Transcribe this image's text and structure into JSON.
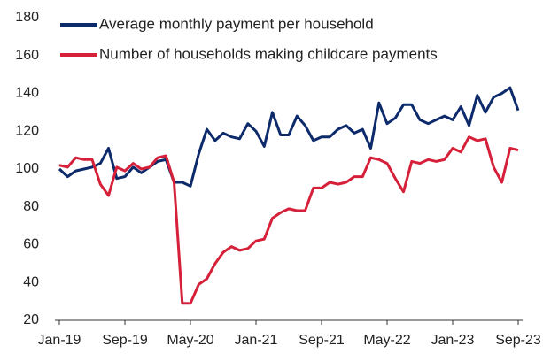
{
  "chart_data": {
    "type": "line",
    "categories": [
      "Jan-19",
      null,
      null,
      null,
      null,
      null,
      null,
      null,
      "Sep-19",
      null,
      null,
      null,
      null,
      null,
      null,
      null,
      "May-20",
      null,
      null,
      null,
      null,
      null,
      null,
      null,
      "Jan-21",
      null,
      null,
      null,
      null,
      null,
      null,
      null,
      "Sep-21",
      null,
      null,
      null,
      null,
      null,
      null,
      null,
      "May-22",
      null,
      null,
      null,
      null,
      null,
      null,
      null,
      "Jan-23",
      null,
      null,
      null,
      null,
      null,
      null,
      null,
      "Sep-23"
    ],
    "series": [
      {
        "name": "Average monthly payment per household",
        "color": "#0d2a6b",
        "values": [
          100,
          96,
          99,
          100,
          101,
          103,
          111,
          95,
          96,
          101,
          98,
          101,
          104,
          105,
          93,
          93,
          91,
          108,
          121,
          115,
          119,
          117,
          116,
          124,
          120,
          112,
          130,
          118,
          118,
          128,
          123,
          115,
          117,
          117,
          121,
          123,
          119,
          121,
          111,
          135,
          124,
          127,
          134,
          134,
          126,
          124,
          126,
          128,
          126,
          133,
          123,
          139,
          130,
          138,
          140,
          143,
          131
        ]
      },
      {
        "name": "Number of households making childcare payments",
        "color": "#d6203a",
        "values": [
          102,
          101,
          106,
          105,
          105,
          92,
          86,
          101,
          99,
          103,
          100,
          101,
          106,
          107,
          93,
          29,
          29,
          39,
          42,
          50,
          56,
          59,
          57,
          58,
          62,
          63,
          74,
          77,
          79,
          78,
          78,
          90,
          90,
          93,
          92,
          93,
          96,
          96,
          106,
          105,
          103,
          95,
          88,
          104,
          103,
          105,
          104,
          105,
          111,
          109,
          117,
          115,
          116,
          101,
          93,
          111,
          110
        ]
      }
    ],
    "ylim": [
      20,
      180
    ],
    "yticks": [
      20,
      40,
      60,
      80,
      100,
      120,
      140,
      160,
      180
    ],
    "grid": false,
    "legend": "top-left"
  }
}
